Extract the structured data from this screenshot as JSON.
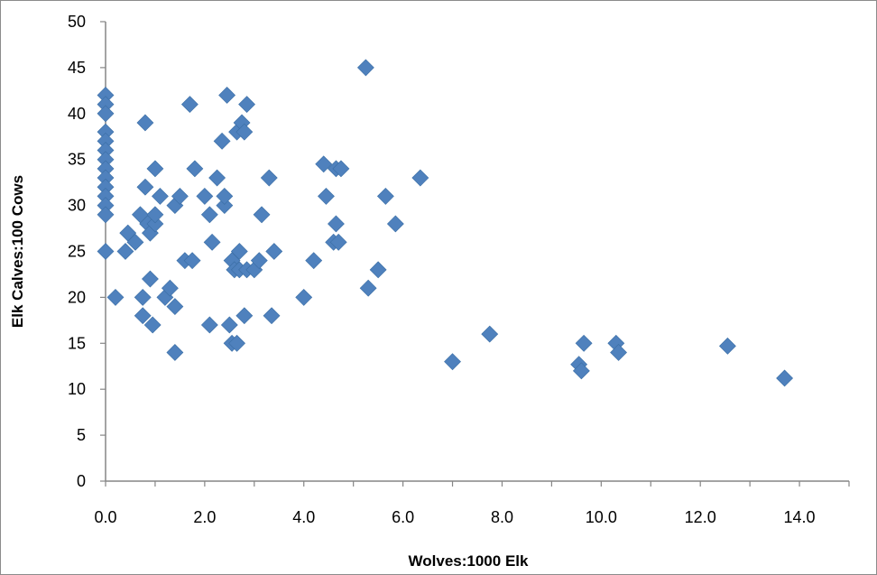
{
  "chart_data": {
    "type": "scatter",
    "xlabel": "Wolves:1000 Elk",
    "ylabel": "Elk Calves:100 Cows",
    "xlim": [
      0,
      15
    ],
    "ylim": [
      0,
      50
    ],
    "x_ticks": [
      "0.0",
      "2.0",
      "4.0",
      "6.0",
      "8.0",
      "10.0",
      "12.0",
      "14.0"
    ],
    "x_tick_values": [
      0,
      2,
      4,
      6,
      8,
      10,
      12,
      14
    ],
    "y_ticks": [
      "0",
      "5",
      "10",
      "15",
      "20",
      "25",
      "30",
      "35",
      "40",
      "45",
      "50"
    ],
    "y_tick_values": [
      0,
      5,
      10,
      15,
      20,
      25,
      30,
      35,
      40,
      45,
      50
    ],
    "grid": false,
    "legend": "none",
    "marker": "diamond",
    "marker_color": "#4f81bd",
    "series": [
      {
        "points": [
          [
            0.0,
            42
          ],
          [
            0.0,
            41
          ],
          [
            0.0,
            40
          ],
          [
            0.0,
            38
          ],
          [
            0.0,
            37
          ],
          [
            0.0,
            36
          ],
          [
            0.0,
            35
          ],
          [
            0.0,
            34
          ],
          [
            0.0,
            33
          ],
          [
            0.0,
            32
          ],
          [
            0.0,
            31
          ],
          [
            0.0,
            30
          ],
          [
            0.0,
            29
          ],
          [
            0.0,
            25
          ],
          [
            0.2,
            20
          ],
          [
            0.4,
            25
          ],
          [
            0.45,
            27
          ],
          [
            0.6,
            26
          ],
          [
            0.7,
            29
          ],
          [
            0.75,
            18
          ],
          [
            0.75,
            20
          ],
          [
            0.8,
            39
          ],
          [
            0.8,
            32
          ],
          [
            0.85,
            28
          ],
          [
            0.9,
            22
          ],
          [
            0.9,
            27
          ],
          [
            0.95,
            17
          ],
          [
            1.0,
            28
          ],
          [
            1.0,
            34
          ],
          [
            1.0,
            29
          ],
          [
            1.1,
            31
          ],
          [
            1.2,
            20
          ],
          [
            1.3,
            21
          ],
          [
            1.4,
            19
          ],
          [
            1.4,
            14
          ],
          [
            1.4,
            30
          ],
          [
            1.5,
            31
          ],
          [
            1.6,
            24
          ],
          [
            1.7,
            41
          ],
          [
            1.75,
            24
          ],
          [
            1.8,
            34
          ],
          [
            2.0,
            31
          ],
          [
            2.1,
            29
          ],
          [
            2.1,
            17
          ],
          [
            2.15,
            26
          ],
          [
            2.25,
            33
          ],
          [
            2.35,
            37
          ],
          [
            2.4,
            30
          ],
          [
            2.4,
            31
          ],
          [
            2.45,
            42
          ],
          [
            2.5,
            17
          ],
          [
            2.55,
            15
          ],
          [
            2.55,
            24
          ],
          [
            2.6,
            23
          ],
          [
            2.65,
            38
          ],
          [
            2.65,
            15
          ],
          [
            2.7,
            23
          ],
          [
            2.7,
            25
          ],
          [
            2.75,
            39
          ],
          [
            2.8,
            38
          ],
          [
            2.8,
            18
          ],
          [
            2.85,
            41
          ],
          [
            2.85,
            23
          ],
          [
            3.0,
            23
          ],
          [
            3.1,
            24
          ],
          [
            3.15,
            29
          ],
          [
            3.3,
            33
          ],
          [
            3.35,
            18
          ],
          [
            3.4,
            25
          ],
          [
            4.0,
            20
          ],
          [
            4.2,
            24
          ],
          [
            4.4,
            34.5
          ],
          [
            4.45,
            31
          ],
          [
            4.6,
            26
          ],
          [
            4.65,
            28
          ],
          [
            4.65,
            34
          ],
          [
            4.7,
            26
          ],
          [
            4.75,
            34
          ],
          [
            5.25,
            45
          ],
          [
            5.3,
            21
          ],
          [
            5.5,
            23
          ],
          [
            5.65,
            31
          ],
          [
            5.85,
            28
          ],
          [
            6.35,
            33
          ],
          [
            7.0,
            13
          ],
          [
            7.75,
            16
          ],
          [
            9.55,
            12.7
          ],
          [
            9.6,
            12
          ],
          [
            9.65,
            15
          ],
          [
            10.3,
            15
          ],
          [
            10.35,
            14
          ],
          [
            12.55,
            14.7
          ],
          [
            13.7,
            11.2
          ]
        ]
      }
    ]
  }
}
